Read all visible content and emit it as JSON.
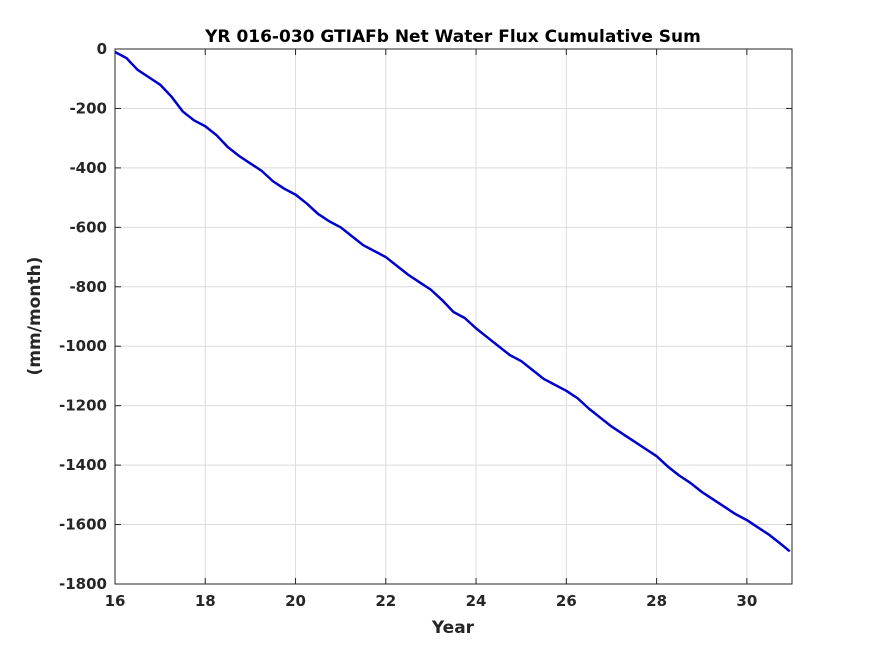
{
  "chart_data": {
    "type": "line",
    "title": "YR 016-030 GTIAFb Net Water Flux Cumulative Sum",
    "xlabel": "Year",
    "ylabel": "(mm/month)",
    "xlim": [
      16,
      31
    ],
    "ylim": [
      -1800,
      0
    ],
    "xticks": [
      16,
      18,
      20,
      22,
      24,
      26,
      28,
      30
    ],
    "yticks": [
      0,
      -200,
      -400,
      -600,
      -800,
      -1000,
      -1200,
      -1400,
      -1600,
      -1800
    ],
    "grid": true,
    "line_color": "#0000cc",
    "series": [
      {
        "x": [
          16.0,
          16.25,
          16.5,
          16.75,
          17.0,
          17.25,
          17.5,
          17.75,
          18.0,
          18.25,
          18.5,
          18.75,
          19.0,
          19.25,
          19.5,
          19.75,
          20.0,
          20.25,
          20.5,
          20.75,
          21.0,
          21.25,
          21.5,
          21.75,
          22.0,
          22.25,
          22.5,
          22.75,
          23.0,
          23.25,
          23.5,
          23.75,
          24.0,
          24.25,
          24.5,
          24.75,
          25.0,
          25.25,
          25.5,
          25.75,
          26.0,
          26.25,
          26.5,
          26.75,
          27.0,
          27.25,
          27.5,
          27.75,
          28.0,
          28.25,
          28.5,
          28.75,
          29.0,
          29.25,
          29.5,
          29.75,
          30.0,
          30.25,
          30.5,
          30.75,
          30.95
        ],
        "y": [
          -10,
          -30,
          -70,
          -95,
          -120,
          -160,
          -210,
          -240,
          -260,
          -290,
          -330,
          -360,
          -385,
          -410,
          -445,
          -470,
          -490,
          -520,
          -555,
          -580,
          -600,
          -630,
          -660,
          -680,
          -700,
          -730,
          -760,
          -785,
          -810,
          -845,
          -885,
          -905,
          -940,
          -970,
          -1000,
          -1030,
          -1050,
          -1080,
          -1110,
          -1130,
          -1150,
          -1175,
          -1210,
          -1240,
          -1270,
          -1295,
          -1320,
          -1345,
          -1370,
          -1405,
          -1435,
          -1460,
          -1490,
          -1515,
          -1540,
          -1565,
          -1585,
          -1610,
          -1635,
          -1665,
          -1690
        ]
      }
    ]
  }
}
